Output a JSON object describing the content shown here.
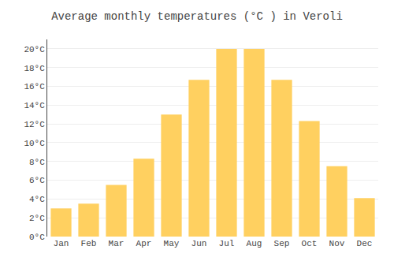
{
  "chart_data": {
    "type": "bar",
    "title": "Average monthly temperatures (°C ) in Veroli",
    "categories": [
      "Jan",
      "Feb",
      "Mar",
      "Apr",
      "May",
      "Jun",
      "Jul",
      "Aug",
      "Sep",
      "Oct",
      "Nov",
      "Dec"
    ],
    "values": [
      3.0,
      3.5,
      5.5,
      8.3,
      13.0,
      16.7,
      20.0,
      20.0,
      16.7,
      12.3,
      7.5,
      4.1
    ],
    "color": "#FFD060",
    "ylim": [
      0,
      21
    ],
    "yticks": [
      {
        "value": 0,
        "label": "0°C"
      },
      {
        "value": 2,
        "label": "2°C"
      },
      {
        "value": 4,
        "label": "4°C"
      },
      {
        "value": 6,
        "label": "6°C"
      },
      {
        "value": 8,
        "label": "8°C"
      },
      {
        "value": 10,
        "label": "10°C"
      },
      {
        "value": 12,
        "label": "12°C"
      },
      {
        "value": 14,
        "label": "14°C"
      },
      {
        "value": 16,
        "label": "16°C"
      },
      {
        "value": 18,
        "label": "18°C"
      },
      {
        "value": 20,
        "label": "20°C"
      }
    ],
    "grid": true
  }
}
